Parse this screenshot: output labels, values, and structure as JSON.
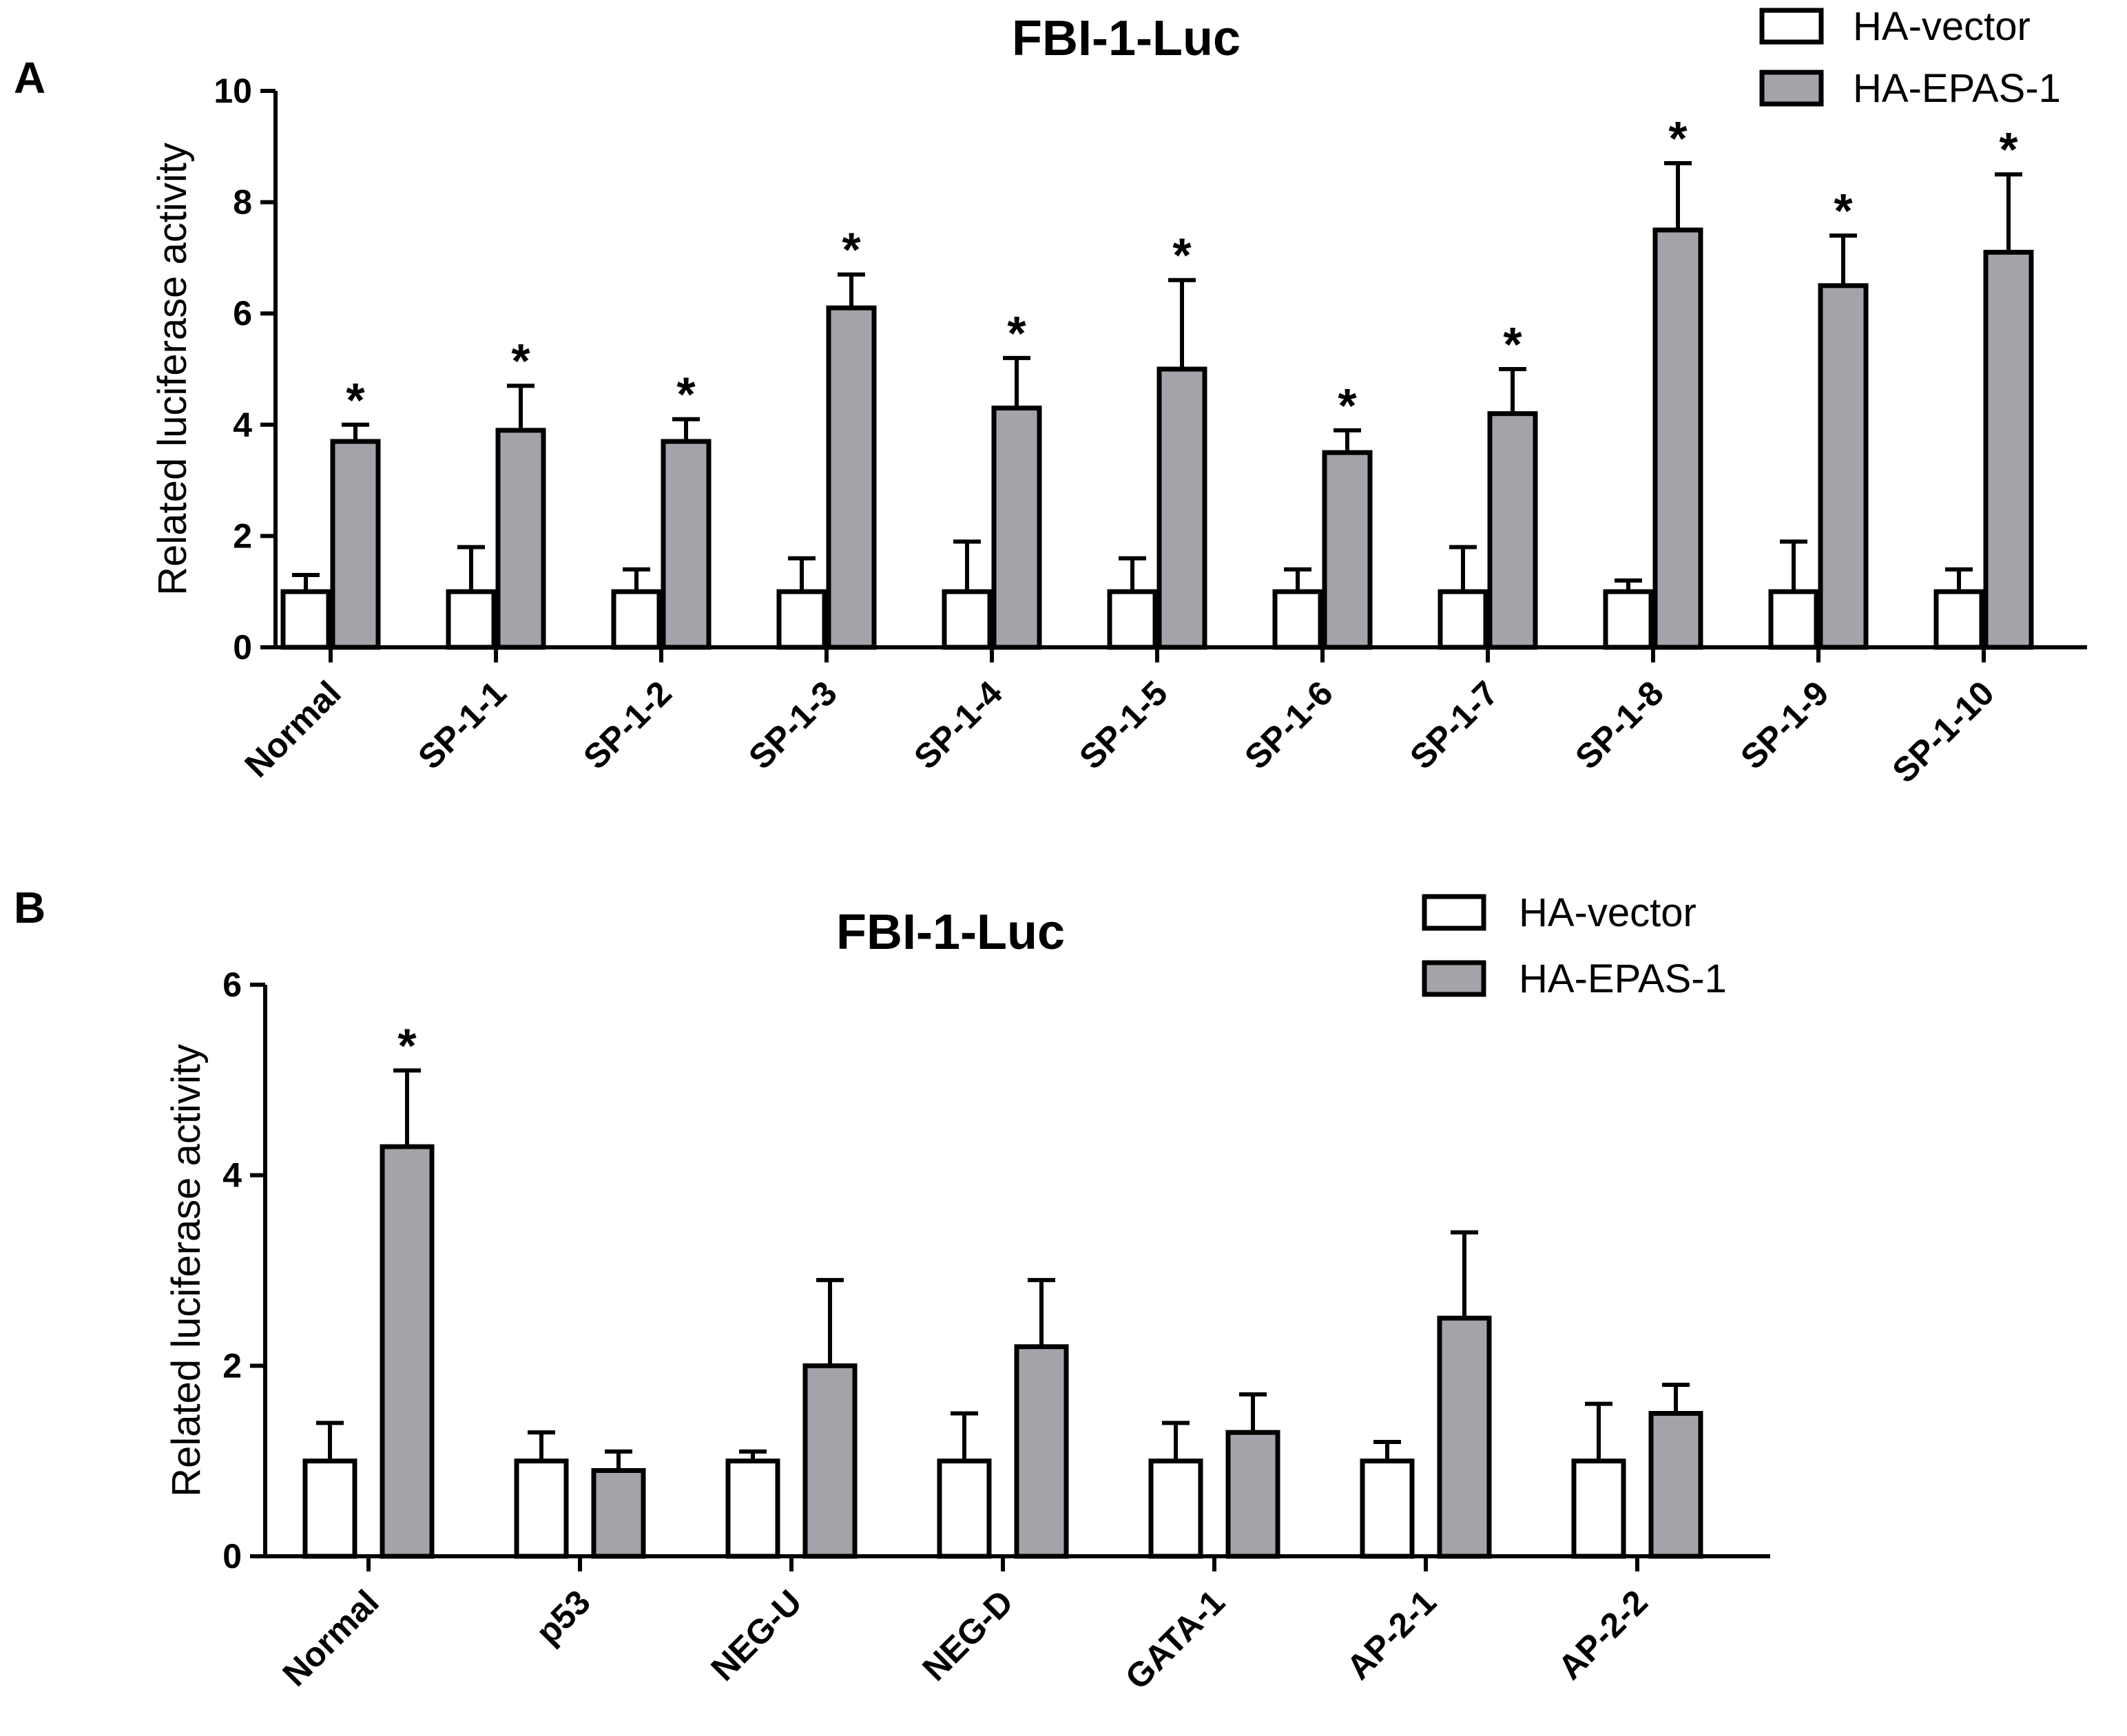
{
  "chart_data": [
    {
      "panel": "A",
      "type": "bar",
      "title": "FBI-1-Luc",
      "xlabel": "",
      "ylabel": "Related luciferase activity",
      "ylim": [
        0,
        10
      ],
      "yticks": [
        0,
        2,
        4,
        6,
        8,
        10
      ],
      "categories": [
        "Normal",
        "SP-1-1",
        "SP-1-2",
        "SP-1-3",
        "SP-1-4",
        "SP-1-5",
        "SP-1-6",
        "SP-1-7",
        "SP-1-8",
        "SP-1-9",
        "SP-1-10"
      ],
      "series": [
        {
          "name": "HA-vector",
          "color": "#ffffff",
          "values": [
            1,
            1,
            1,
            1,
            1,
            1,
            1,
            1,
            1,
            1,
            1
          ],
          "errors": [
            0.3,
            0.8,
            0.4,
            0.6,
            0.9,
            0.6,
            0.4,
            0.8,
            0.2,
            0.9,
            0.4
          ]
        },
        {
          "name": "HA-EPAS-1",
          "color": "#a3a3aa",
          "values": [
            3.7,
            3.9,
            3.7,
            6.1,
            4.3,
            5.0,
            3.5,
            4.2,
            7.5,
            6.5,
            7.1
          ],
          "errors": [
            0.3,
            0.8,
            0.4,
            0.6,
            0.9,
            1.6,
            0.4,
            0.8,
            1.2,
            0.9,
            1.4
          ]
        }
      ],
      "significance": [
        "*",
        "*",
        "*",
        "*",
        "*",
        "*",
        "*",
        "*",
        "*",
        "*",
        "*"
      ],
      "legend_position": "top-right"
    },
    {
      "panel": "B",
      "type": "bar",
      "title": "FBI-1-Luc",
      "xlabel": "",
      "ylabel": "Related luciferase activity",
      "ylim": [
        0,
        6
      ],
      "yticks": [
        0,
        2,
        4,
        6
      ],
      "categories": [
        "Normal",
        "p53",
        "NEG-U",
        "NEG-D",
        "GATA-1",
        "AP-2-1",
        "AP-2-2"
      ],
      "series": [
        {
          "name": "HA-vector",
          "color": "#ffffff",
          "values": [
            1,
            1,
            1,
            1,
            1,
            1,
            1
          ],
          "errors": [
            0.4,
            0.3,
            0.1,
            0.5,
            0.4,
            0.2,
            0.6
          ]
        },
        {
          "name": "HA-EPAS-1",
          "color": "#a3a3aa",
          "values": [
            4.3,
            0.9,
            2.0,
            2.2,
            1.3,
            2.5,
            1.5
          ],
          "errors": [
            0.8,
            0.2,
            0.9,
            0.7,
            0.4,
            0.9,
            0.3
          ]
        }
      ],
      "significance": [
        "*",
        "",
        "",
        "",
        "",
        "",
        ""
      ],
      "legend_position": "top-right"
    }
  ]
}
